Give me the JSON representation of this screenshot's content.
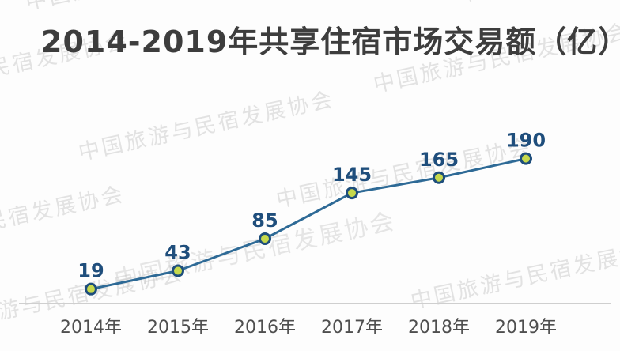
{
  "title": "2014-2019年共享住宿市场交易额（亿）",
  "watermark": {
    "text": "中国旅游与民宿发展协会"
  },
  "chart_data": {
    "type": "line",
    "title": "2014-2019年共享住宿市场交易额（亿）",
    "categories": [
      "2014年",
      "2015年",
      "2016年",
      "2017年",
      "2018年",
      "2019年"
    ],
    "values": [
      19,
      43,
      85,
      145,
      165,
      190
    ],
    "series": [
      {
        "name": "共享住宿市场交易额（亿）",
        "values": [
          19,
          43,
          85,
          145,
          165,
          190
        ]
      }
    ],
    "xlabel": "",
    "ylabel": "",
    "ylim": [
      0,
      200
    ],
    "grid": false,
    "legend": false,
    "data_labels": true,
    "colors": {
      "line": "#2e6a96",
      "marker_fill": "#c6d94c",
      "marker_stroke": "#1e4e7c",
      "point_label": "#1f4e7c",
      "axis_line": "#cfcfcf",
      "axis_label": "#4f4f4f"
    }
  }
}
